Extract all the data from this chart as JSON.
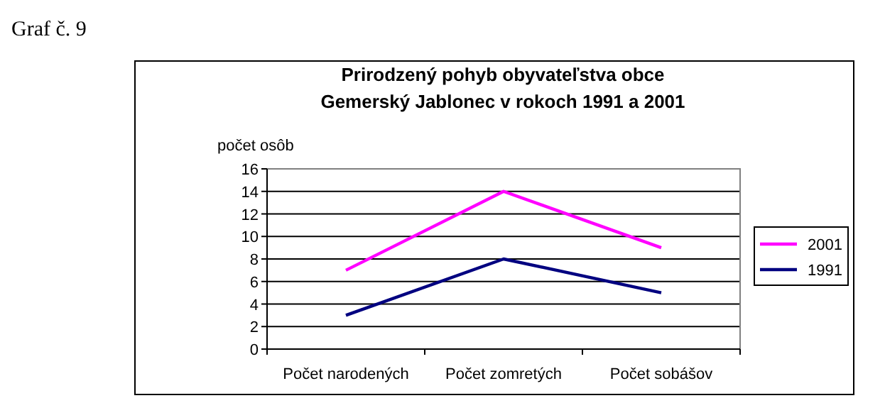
{
  "chart_data": {
    "type": "line",
    "title": "Prirodzený pohyb obyvateľstva  obce\nGemerský Jablonec v rokoch 1991 a 2001",
    "ylabel": "počet osôb",
    "annotations": [
      "Graf č. 9"
    ],
    "categories": [
      "Počet narodených",
      "Počet zomretých",
      "Počet sobášov"
    ],
    "series": [
      {
        "name": "2001",
        "color": "#ff00ff",
        "values": [
          7,
          14,
          9
        ]
      },
      {
        "name": "1991",
        "color": "#000080",
        "values": [
          3,
          8,
          5
        ]
      }
    ],
    "ylim": [
      0,
      16
    ],
    "yticks": [
      0,
      2,
      4,
      6,
      8,
      10,
      12,
      14,
      16
    ],
    "grid": "y",
    "legend": "right",
    "marker": "none"
  }
}
